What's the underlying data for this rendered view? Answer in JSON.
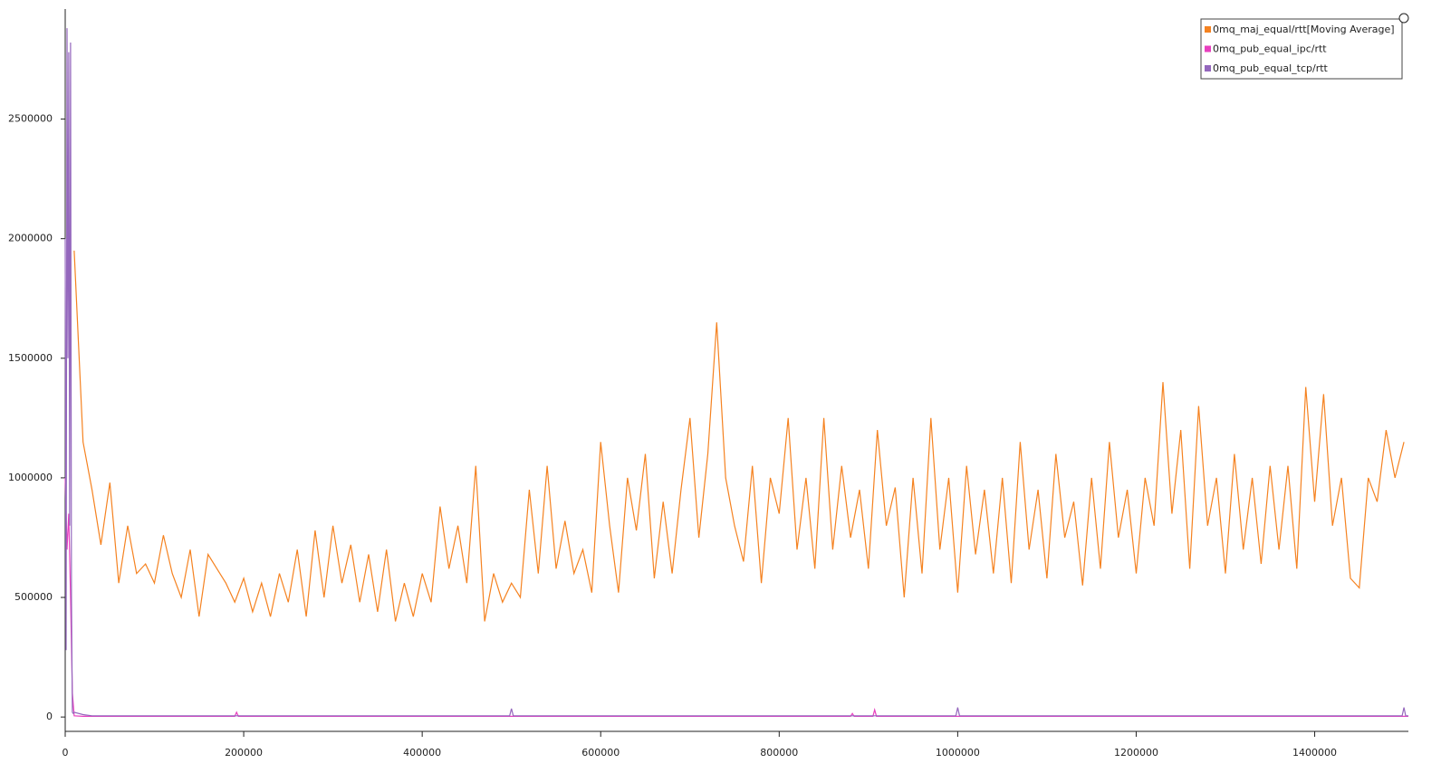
{
  "chart_data": {
    "type": "line",
    "xlim": [
      0,
      1505000
    ],
    "ylim": [
      -60000,
      2960000
    ],
    "xticks": [
      0,
      200000,
      400000,
      600000,
      800000,
      1000000,
      1200000,
      1400000
    ],
    "yticks": [
      0,
      500000,
      1000000,
      1500000,
      2000000,
      2500000
    ],
    "legend": "top-right",
    "series": [
      {
        "name": "0mq_maj_equal/rtt[Moving Average]",
        "color": "#f58220",
        "x": [
          10000,
          20000,
          30000,
          40000,
          50000,
          60000,
          70000,
          80000,
          90000,
          100000,
          110000,
          120000,
          130000,
          140000,
          150000,
          160000,
          170000,
          180000,
          190000,
          200000,
          210000,
          220000,
          230000,
          240000,
          250000,
          260000,
          270000,
          280000,
          290000,
          300000,
          310000,
          320000,
          330000,
          340000,
          350000,
          360000,
          370000,
          380000,
          390000,
          400000,
          410000,
          420000,
          430000,
          440000,
          450000,
          460000,
          470000,
          480000,
          490000,
          500000,
          510000,
          520000,
          530000,
          540000,
          550000,
          560000,
          570000,
          580000,
          590000,
          600000,
          610000,
          620000,
          630000,
          640000,
          650000,
          660000,
          670000,
          680000,
          690000,
          700000,
          710000,
          720000,
          730000,
          740000,
          750000,
          760000,
          770000,
          780000,
          790000,
          800000,
          810000,
          820000,
          830000,
          840000,
          850000,
          860000,
          870000,
          880000,
          890000,
          900000,
          910000,
          920000,
          930000,
          940000,
          950000,
          960000,
          970000,
          980000,
          990000,
          1000000,
          1010000,
          1020000,
          1030000,
          1040000,
          1050000,
          1060000,
          1070000,
          1080000,
          1090000,
          1100000,
          1110000,
          1120000,
          1130000,
          1140000,
          1150000,
          1160000,
          1170000,
          1180000,
          1190000,
          1200000,
          1210000,
          1220000,
          1230000,
          1240000,
          1250000,
          1260000,
          1270000,
          1280000,
          1290000,
          1300000,
          1310000,
          1320000,
          1330000,
          1340000,
          1350000,
          1360000,
          1370000,
          1380000,
          1390000,
          1400000,
          1410000,
          1420000,
          1430000,
          1440000,
          1450000,
          1460000,
          1470000,
          1480000,
          1490000,
          1500000
        ],
        "values": [
          1950000,
          1150000,
          950000,
          720000,
          980000,
          560000,
          800000,
          600000,
          640000,
          560000,
          760000,
          600000,
          500000,
          700000,
          420000,
          680000,
          620000,
          560000,
          480000,
          580000,
          440000,
          560000,
          420000,
          600000,
          480000,
          700000,
          420000,
          780000,
          500000,
          800000,
          560000,
          720000,
          480000,
          680000,
          440000,
          700000,
          400000,
          560000,
          420000,
          600000,
          480000,
          880000,
          620000,
          800000,
          560000,
          1050000,
          400000,
          600000,
          480000,
          560000,
          500000,
          950000,
          600000,
          1050000,
          620000,
          820000,
          600000,
          700000,
          520000,
          1150000,
          800000,
          520000,
          1000000,
          780000,
          1100000,
          580000,
          900000,
          600000,
          950000,
          1250000,
          750000,
          1100000,
          1650000,
          1000000,
          800000,
          650000,
          1050000,
          560000,
          1000000,
          850000,
          1250000,
          700000,
          1000000,
          620000,
          1250000,
          700000,
          1050000,
          750000,
          950000,
          620000,
          1200000,
          800000,
          960000,
          500000,
          1000000,
          600000,
          1250000,
          700000,
          1000000,
          520000,
          1050000,
          680000,
          950000,
          600000,
          1000000,
          560000,
          1150000,
          700000,
          950000,
          580000,
          1100000,
          750000,
          900000,
          550000,
          1000000,
          620000,
          1150000,
          750000,
          950000,
          600000,
          1000000,
          800000,
          1400000,
          850000,
          1200000,
          620000,
          1300000,
          800000,
          1000000,
          600000,
          1100000,
          700000,
          1000000,
          640000,
          1050000,
          700000,
          1050000,
          620000,
          1380000,
          900000,
          1350000,
          800000,
          1000000,
          580000,
          540000,
          1000000,
          900000,
          1200000,
          1000000,
          1150000
        ]
      },
      {
        "name": "0mq_pub_equal_ipc/rtt",
        "color": "#e83fbf",
        "x": [
          0,
          2000,
          4000,
          6000,
          8000,
          10000,
          20000,
          190000,
          192000,
          194000,
          880000,
          882000,
          884000,
          905000,
          907000,
          909000,
          1505000
        ],
        "values": [
          1000000,
          700000,
          850000,
          500000,
          100000,
          5000,
          3000,
          3000,
          20000,
          3000,
          3000,
          15000,
          3000,
          3000,
          30000,
          3000,
          3000
        ]
      },
      {
        "name": "0mq_pub_equal_tcp/rtt",
        "color": "#9467bd",
        "x": [
          0,
          1000,
          2000,
          3000,
          4000,
          5000,
          6000,
          7000,
          8000,
          9000,
          10000,
          20000,
          30000,
          498000,
          500000,
          502000,
          998000,
          1000000,
          1002000,
          1498000,
          1500000,
          1502000,
          1505000
        ],
        "values": [
          2000000,
          280000,
          2880000,
          1500000,
          2780000,
          800000,
          2820000,
          500000,
          20000,
          15000,
          20000,
          10000,
          5000,
          5000,
          35000,
          5000,
          5000,
          40000,
          5000,
          5000,
          40000,
          5000,
          5000
        ]
      }
    ]
  }
}
